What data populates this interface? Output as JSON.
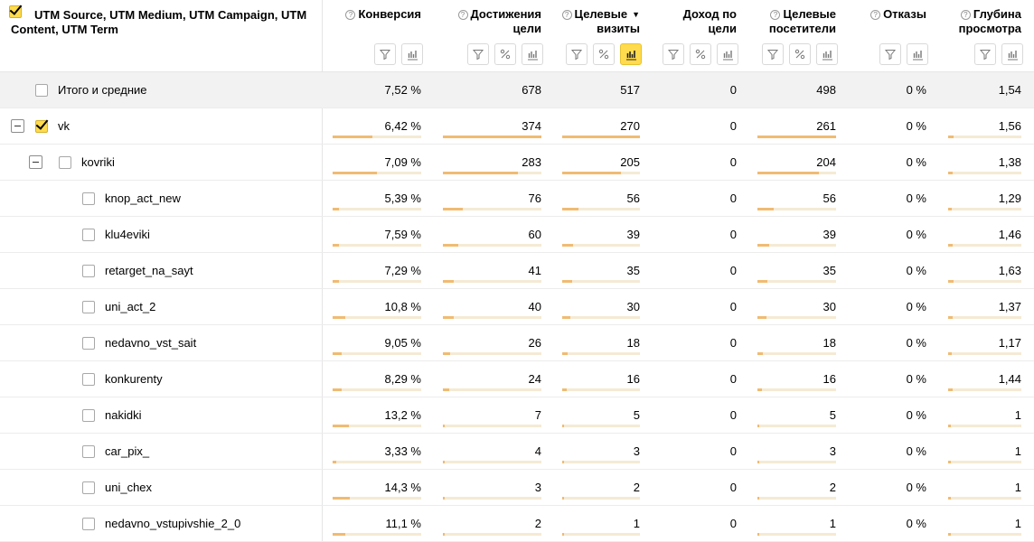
{
  "header": {
    "dimension_title": "UTM Source, UTM Medium, UTM Campaign, UTM Content, UTM Term",
    "columns": [
      {
        "key": "conv",
        "l1": "Конверсия",
        "l2": "",
        "help": true,
        "sort": ""
      },
      {
        "key": "goals",
        "l1": "Достижения",
        "l2": "цели",
        "help": true,
        "sort": ""
      },
      {
        "key": "visits",
        "l1": "Целевые",
        "l2": "визиты",
        "help": true,
        "sort": "▼"
      },
      {
        "key": "income",
        "l1": "Доход по",
        "l2": "цели",
        "help": false,
        "sort": ""
      },
      {
        "key": "visitors",
        "l1": "Целевые",
        "l2": "посетители",
        "help": true,
        "sort": ""
      },
      {
        "key": "bounce",
        "l1": "Отказы",
        "l2": "",
        "help": true,
        "sort": ""
      },
      {
        "key": "depth",
        "l1": "Глубина",
        "l2": "просмотра",
        "help": true,
        "sort": ""
      }
    ],
    "tool_icons": [
      "filter-icon",
      "percent-icon",
      "bar-chart-icon"
    ]
  },
  "rows": [
    {
      "label": "Итого и средние",
      "level": 0,
      "total": true,
      "checked": false,
      "collapse": false,
      "values": [
        "7,52 %",
        "678",
        "517",
        "0",
        "498",
        "0 %",
        "1,54"
      ]
    },
    {
      "label": "vk",
      "level": 0,
      "total": false,
      "checked": true,
      "collapse": true,
      "values": [
        "6,42 %",
        "374",
        "270",
        "0",
        "261",
        "0 %",
        "1,56"
      ],
      "fills": [
        0.45,
        1.0,
        1.0,
        0,
        1.0,
        0,
        0.07
      ]
    },
    {
      "label": "kovriki",
      "level": 1,
      "total": false,
      "checked": false,
      "collapse": true,
      "values": [
        "7,09 %",
        "283",
        "205",
        "0",
        "204",
        "0 %",
        "1,38"
      ],
      "fills": [
        0.5,
        0.76,
        0.76,
        0,
        0.78,
        0,
        0.06
      ]
    },
    {
      "label": "knop_act_new",
      "level": 2,
      "total": false,
      "checked": false,
      "collapse": false,
      "values": [
        "5,39 %",
        "76",
        "56",
        "0",
        "56",
        "0 %",
        "1,29"
      ],
      "fills": [
        0.07,
        0.2,
        0.21,
        0,
        0.21,
        0,
        0.05
      ]
    },
    {
      "label": "klu4eviki",
      "level": 2,
      "total": false,
      "checked": false,
      "collapse": false,
      "values": [
        "7,59 %",
        "60",
        "39",
        "0",
        "39",
        "0 %",
        "1,46"
      ],
      "fills": [
        0.07,
        0.16,
        0.14,
        0,
        0.15,
        0,
        0.06
      ]
    },
    {
      "label": "retarget_na_sayt",
      "level": 2,
      "total": false,
      "checked": false,
      "collapse": false,
      "values": [
        "7,29 %",
        "41",
        "35",
        "0",
        "35",
        "0 %",
        "1,63"
      ],
      "fills": [
        0.07,
        0.11,
        0.13,
        0,
        0.13,
        0,
        0.07
      ]
    },
    {
      "label": "uni_act_2",
      "level": 2,
      "total": false,
      "checked": false,
      "collapse": false,
      "values": [
        "10,8 %",
        "40",
        "30",
        "0",
        "30",
        "0 %",
        "1,37"
      ],
      "fills": [
        0.14,
        0.11,
        0.11,
        0,
        0.11,
        0,
        0.06
      ]
    },
    {
      "label": "nedavno_vst_sait",
      "level": 2,
      "total": false,
      "checked": false,
      "collapse": false,
      "values": [
        "9,05 %",
        "26",
        "18",
        "0",
        "18",
        "0 %",
        "1,17"
      ],
      "fills": [
        0.1,
        0.07,
        0.07,
        0,
        0.07,
        0,
        0.05
      ]
    },
    {
      "label": "konkurenty",
      "level": 2,
      "total": false,
      "checked": false,
      "collapse": false,
      "values": [
        "8,29 %",
        "24",
        "16",
        "0",
        "16",
        "0 %",
        "1,44"
      ],
      "fills": [
        0.1,
        0.06,
        0.06,
        0,
        0.06,
        0,
        0.06
      ]
    },
    {
      "label": "nakidki",
      "level": 2,
      "total": false,
      "checked": false,
      "collapse": false,
      "values": [
        "13,2 %",
        "7",
        "5",
        "0",
        "5",
        "0 %",
        "1"
      ],
      "fills": [
        0.18,
        0.02,
        0.02,
        0,
        0.02,
        0,
        0.04
      ]
    },
    {
      "label": "car_pix_",
      "level": 2,
      "total": false,
      "checked": false,
      "collapse": false,
      "values": [
        "3,33 %",
        "4",
        "3",
        "0",
        "3",
        "0 %",
        "1"
      ],
      "fills": [
        0.04,
        0.01,
        0.01,
        0,
        0.01,
        0,
        0.04
      ]
    },
    {
      "label": "uni_chex",
      "level": 2,
      "total": false,
      "checked": false,
      "collapse": false,
      "values": [
        "14,3 %",
        "3",
        "2",
        "0",
        "2",
        "0 %",
        "1"
      ],
      "fills": [
        0.19,
        0.01,
        0.01,
        0,
        0.01,
        0,
        0.04
      ]
    },
    {
      "label": "nedavno_vstupivshie_2_0",
      "level": 2,
      "total": false,
      "checked": false,
      "collapse": false,
      "values": [
        "11,1 %",
        "2",
        "1",
        "0",
        "1",
        "0 %",
        "1"
      ],
      "fills": [
        0.14,
        0.01,
        0.01,
        0,
        0.01,
        0,
        0.04
      ]
    }
  ]
}
